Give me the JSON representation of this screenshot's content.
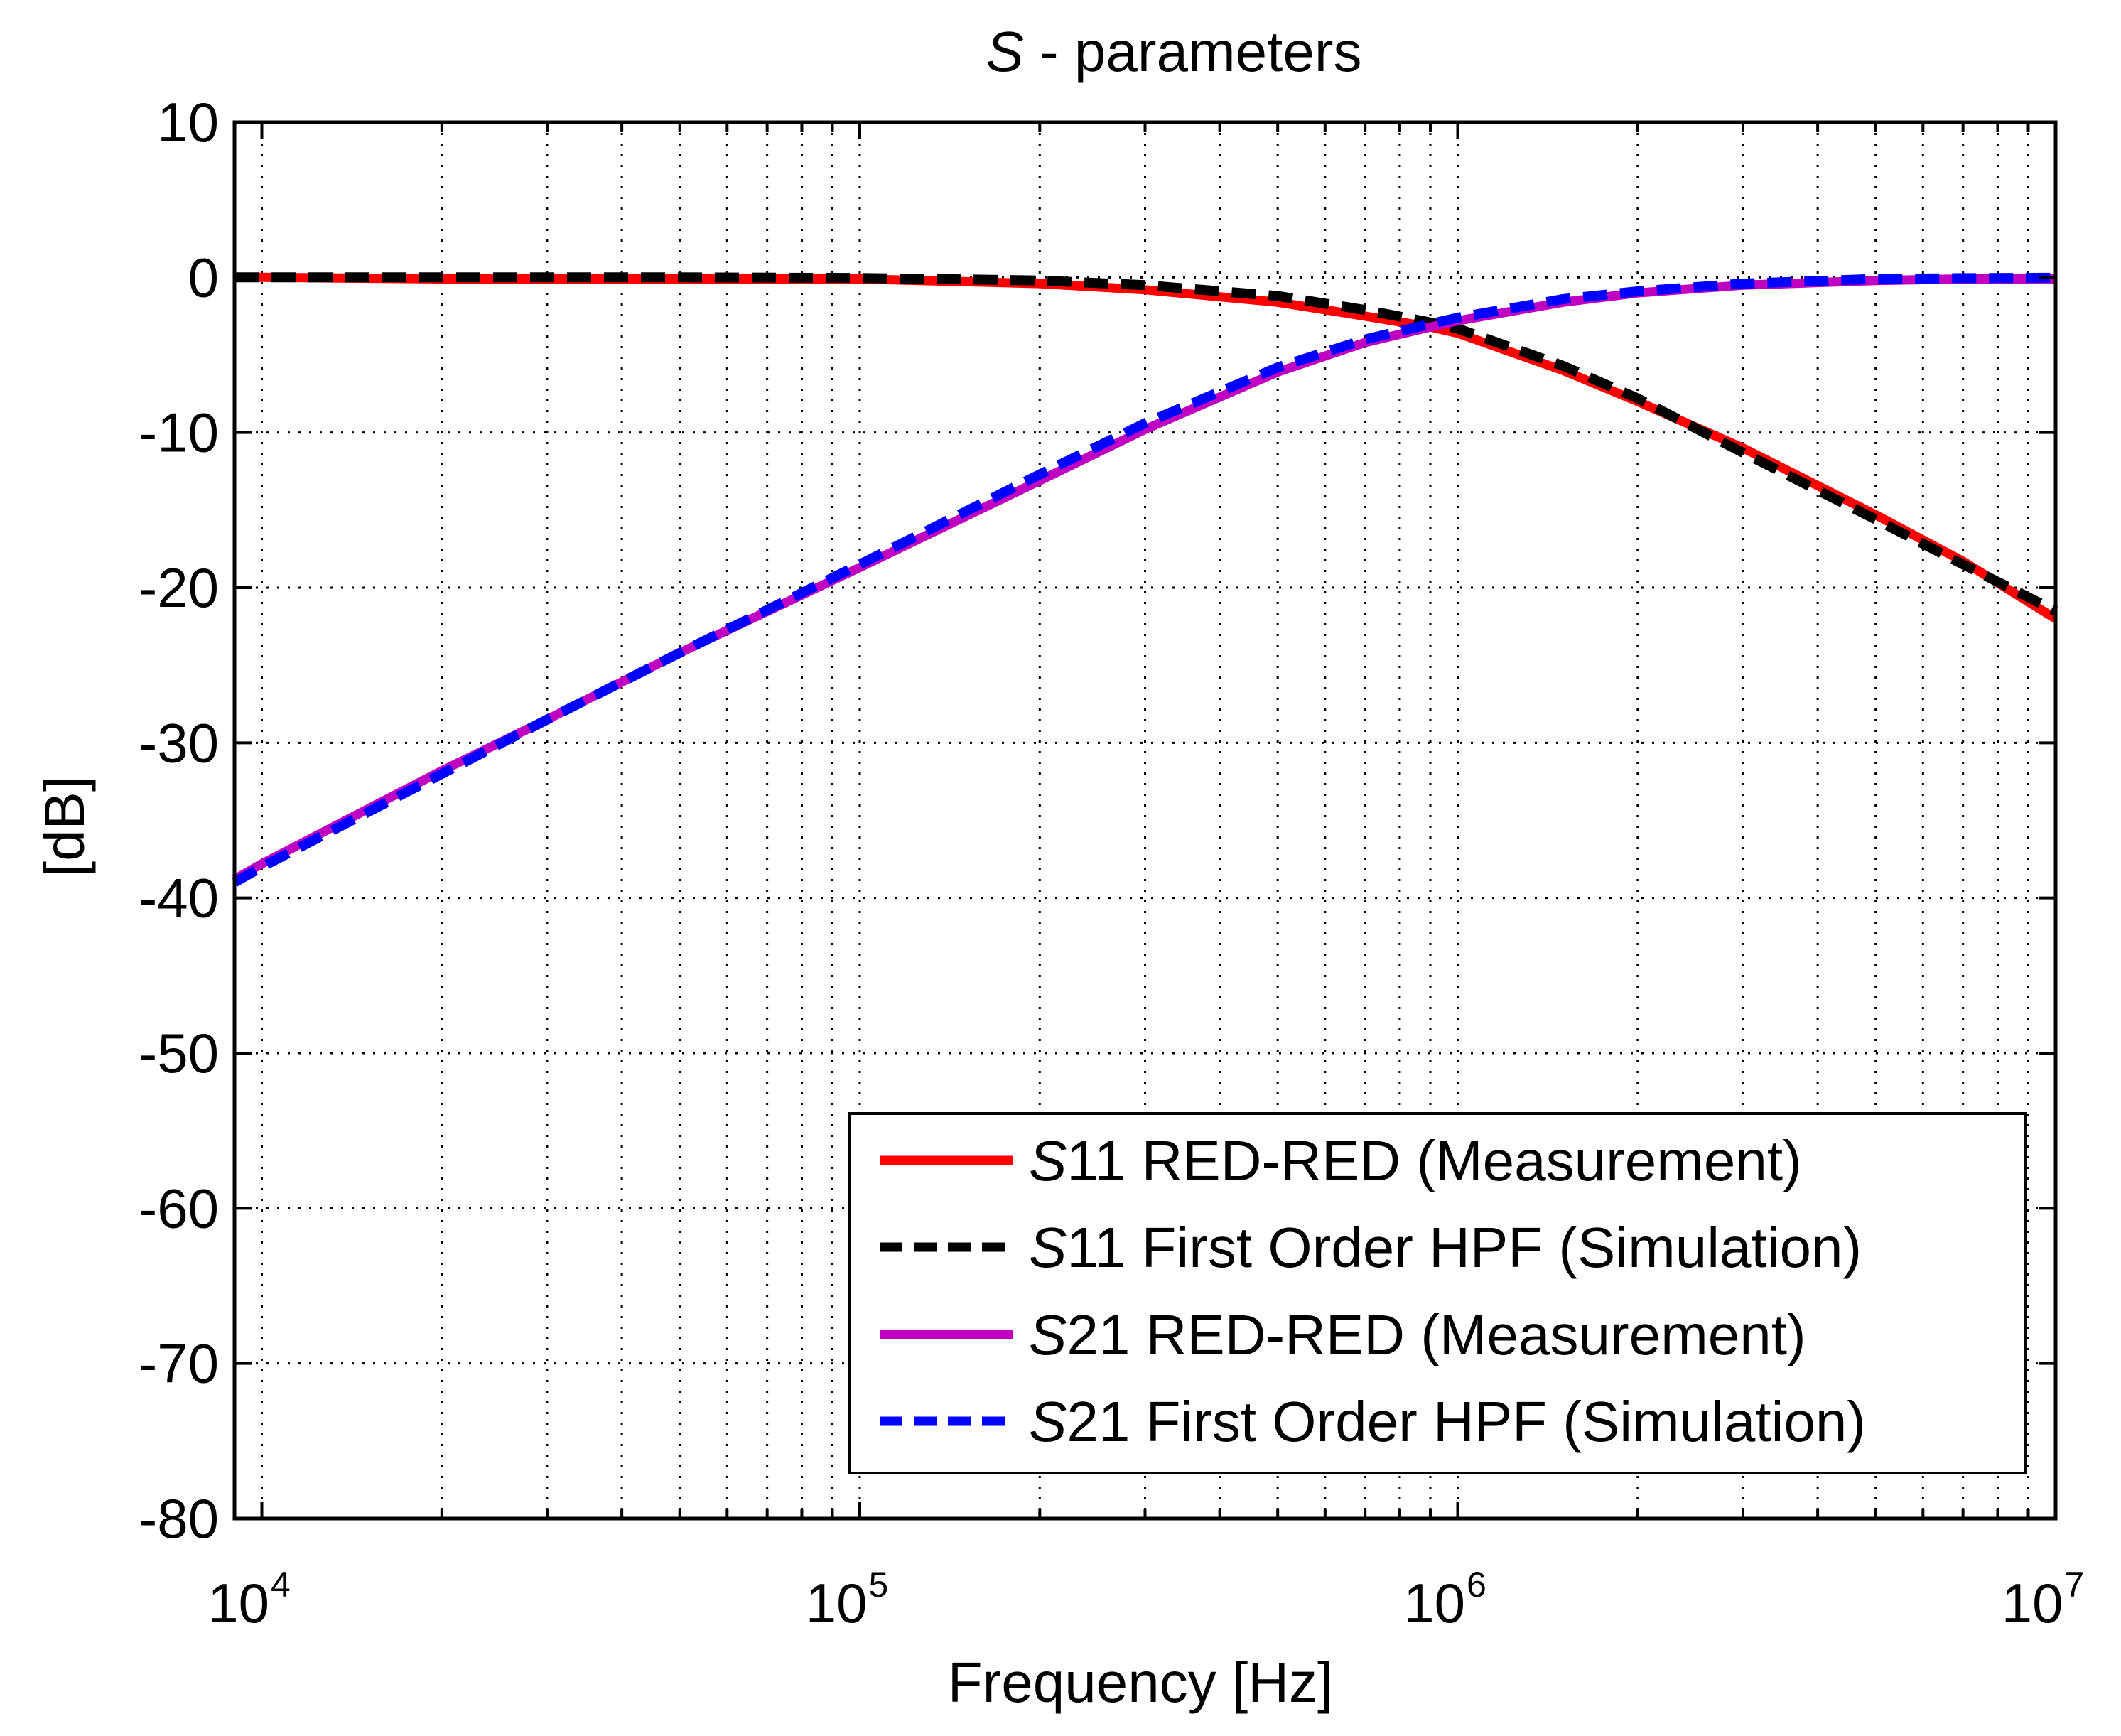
{
  "chart_data": {
    "type": "line",
    "title": "S - parameters",
    "title_italic_part": "S",
    "title_rest": " - parameters",
    "xlabel": "Frequency [Hz]",
    "ylabel": "[dB]",
    "xscale": "log",
    "xlim": [
      9000,
      10000000
    ],
    "ylim": [
      -80,
      10
    ],
    "grid": true,
    "legend_position": "bottom-right",
    "xticks": [
      {
        "base": "10",
        "exp": "4",
        "value": 10000
      },
      {
        "base": "10",
        "exp": "5",
        "value": 100000
      },
      {
        "base": "10",
        "exp": "6",
        "value": 1000000
      },
      {
        "base": "10",
        "exp": "7",
        "value": 10000000
      }
    ],
    "yticks": [
      {
        "label": "10",
        "value": 10
      },
      {
        "label": "0",
        "value": 0
      },
      {
        "label": "-10",
        "value": -10
      },
      {
        "label": "-20",
        "value": -20
      },
      {
        "label": "-30",
        "value": -30
      },
      {
        "label": "-40",
        "value": -40
      },
      {
        "label": "-50",
        "value": -50
      },
      {
        "label": "-60",
        "value": -60
      },
      {
        "label": "-70",
        "value": -70
      },
      {
        "label": "-80",
        "value": -80
      }
    ],
    "series": [
      {
        "name": "S11 RED-RED (Measurement)",
        "legend_italic": "S",
        "legend_rest": "11 RED-RED (Measurement)",
        "color": "#ff0000",
        "style": "solid",
        "x": [
          9000,
          10000,
          20000,
          50000,
          100000,
          200000,
          300000,
          500000,
          700000,
          900000,
          1000000,
          1500000,
          2000000,
          3000000,
          5000000,
          7000000,
          10000000
        ],
        "y": [
          0.0,
          0.0,
          -0.1,
          -0.1,
          -0.1,
          -0.4,
          -0.8,
          -1.6,
          -2.5,
          -3.2,
          -3.6,
          -6.0,
          -8.0,
          -11.0,
          -15.3,
          -18.3,
          -22.0
        ]
      },
      {
        "name": "S11 First Order HPF (Simulation)",
        "legend_italic": "S",
        "legend_rest": "11 First Order HPF (Simulation)",
        "color": "#000000",
        "style": "dashed",
        "x": [
          9000,
          10000,
          20000,
          50000,
          100000,
          200000,
          300000,
          500000,
          700000,
          900000,
          1000000,
          1500000,
          2000000,
          3000000,
          5000000,
          7000000,
          10000000
        ],
        "y": [
          0.0,
          0.0,
          0.0,
          0.0,
          -0.04,
          -0.2,
          -0.5,
          -1.2,
          -2.1,
          -2.9,
          -3.3,
          -5.7,
          -7.8,
          -11.3,
          -15.6,
          -18.5,
          -21.5
        ]
      },
      {
        "name": "S21 RED-RED (Measurement)",
        "legend_italic": "S",
        "legend_rest": "21 RED-RED (Measurement)",
        "color": "#c000c0",
        "style": "solid",
        "x": [
          9000,
          10000,
          20000,
          30000,
          50000,
          100000,
          200000,
          300000,
          500000,
          700000,
          900000,
          1000000,
          1500000,
          2000000,
          3000000,
          5000000,
          7000000,
          10000000
        ],
        "y": [
          -38.8,
          -37.8,
          -31.8,
          -28.5,
          -24.2,
          -18.7,
          -13.1,
          -9.8,
          -6.1,
          -4.2,
          -3.2,
          -2.8,
          -1.6,
          -1.0,
          -0.5,
          -0.2,
          -0.1,
          -0.1
        ]
      },
      {
        "name": "S21 First Order HPF (Simulation)",
        "legend_italic": "S",
        "legend_rest": "21 First Order HPF (Simulation)",
        "color": "#0000ff",
        "style": "dashed",
        "x": [
          9000,
          10000,
          20000,
          30000,
          50000,
          100000,
          200000,
          300000,
          500000,
          700000,
          900000,
          1000000,
          1500000,
          2000000,
          3000000,
          5000000,
          7000000,
          10000000
        ],
        "y": [
          -39.0,
          -38.0,
          -32.0,
          -28.5,
          -24.2,
          -18.5,
          -12.7,
          -9.4,
          -5.8,
          -4.0,
          -3.0,
          -2.6,
          -1.4,
          -0.9,
          -0.4,
          -0.1,
          -0.05,
          -0.02
        ]
      }
    ]
  }
}
